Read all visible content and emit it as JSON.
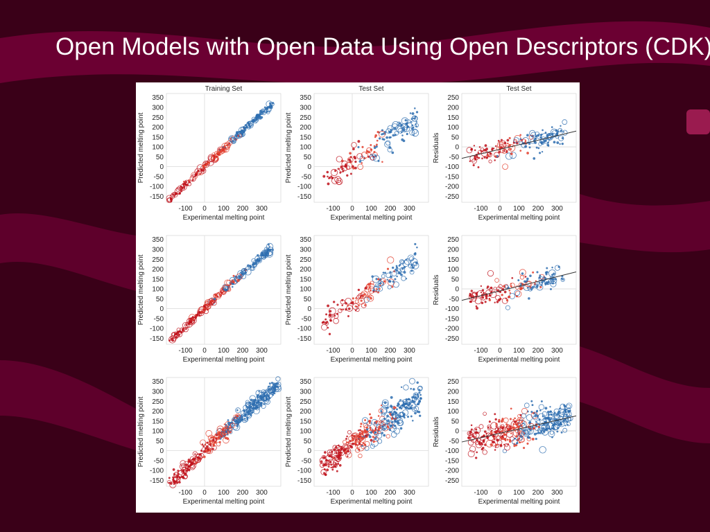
{
  "slide": {
    "title": "Open Models with Open Data Using Open Descriptors (CDK)",
    "colors": {
      "background": "#3a0018",
      "swoosh": "#6e0034",
      "title_text": "#ffffff",
      "figure_bg": "#ffffff"
    }
  },
  "chart_data": [
    {
      "type": "scatter",
      "title": "Training Set",
      "xlabel": "Experimental melting point",
      "ylabel": "Predicted melting point",
      "xlim": [
        -200,
        400
      ],
      "ylim": [
        -180,
        370
      ],
      "xticks": [
        -100,
        0,
        100,
        200,
        300
      ],
      "yticks": [
        -150,
        -100,
        -50,
        0,
        50,
        100,
        150,
        200,
        250,
        300,
        350
      ],
      "grid": "zero-lines",
      "cloud": {
        "kind": "pred",
        "x_range": [
          -190,
          360
        ],
        "slope": 0.92,
        "intercept": 0,
        "spread": 8,
        "points": 260
      }
    },
    {
      "type": "scatter",
      "title": "Test Set",
      "xlabel": "Experimental melting point",
      "ylabel": "Predicted melting point",
      "xlim": [
        -200,
        400
      ],
      "ylim": [
        -180,
        370
      ],
      "xticks": [
        -100,
        0,
        100,
        200,
        300
      ],
      "yticks": [
        -150,
        -100,
        -50,
        0,
        50,
        100,
        150,
        200,
        250,
        300,
        350
      ],
      "grid": "zero-lines",
      "cloud": {
        "kind": "pred",
        "x_range": [
          -160,
          340
        ],
        "slope": 0.65,
        "intercept": 30,
        "spread": 32,
        "points": 160
      }
    },
    {
      "type": "scatter",
      "title": "Test Set",
      "xlabel": "Experimental melting point",
      "ylabel": "Residuals",
      "xlim": [
        -200,
        400
      ],
      "ylim": [
        -280,
        270
      ],
      "xticks": [
        -100,
        0,
        100,
        200,
        300
      ],
      "yticks": [
        -250,
        -200,
        -150,
        -100,
        -50,
        0,
        50,
        100,
        150,
        200,
        250
      ],
      "grid": "zero-lines",
      "trend": {
        "slope": 0.23,
        "intercept": -12
      },
      "cloud": {
        "kind": "resid",
        "x_range": [
          -170,
          340
        ],
        "slope": 0.23,
        "intercept": -12,
        "spread": 30,
        "points": 160
      }
    },
    {
      "type": "scatter",
      "title": "",
      "xlabel": "Experimental melting point",
      "ylabel": "Predicted melting point",
      "xlim": [
        -200,
        400
      ],
      "ylim": [
        -180,
        370
      ],
      "xticks": [
        -100,
        0,
        100,
        200,
        300
      ],
      "yticks": [
        -150,
        -100,
        -50,
        0,
        50,
        100,
        150,
        200,
        250,
        300,
        350
      ],
      "grid": "zero-lines",
      "cloud": {
        "kind": "pred",
        "x_range": [
          -190,
          360
        ],
        "slope": 0.9,
        "intercept": 0,
        "spread": 9,
        "points": 260
      }
    },
    {
      "type": "scatter",
      "title": "",
      "xlabel": "Experimental melting point",
      "ylabel": "Predicted melting point",
      "xlim": [
        -200,
        400
      ],
      "ylim": [
        -180,
        370
      ],
      "xticks": [
        -100,
        0,
        100,
        200,
        300
      ],
      "yticks": [
        -150,
        -100,
        -50,
        0,
        50,
        100,
        150,
        200,
        250,
        300,
        350
      ],
      "grid": "zero-lines",
      "cloud": {
        "kind": "pred",
        "x_range": [
          -160,
          340
        ],
        "slope": 0.68,
        "intercept": 25,
        "spread": 30,
        "points": 160
      }
    },
    {
      "type": "scatter",
      "title": "",
      "xlabel": "Experimental melting point",
      "ylabel": "Residuals",
      "xlim": [
        -200,
        400
      ],
      "ylim": [
        -280,
        270
      ],
      "xticks": [
        -100,
        0,
        100,
        200,
        300
      ],
      "yticks": [
        -250,
        -200,
        -150,
        -100,
        -50,
        0,
        50,
        100,
        150,
        200,
        250
      ],
      "grid": "zero-lines",
      "trend": {
        "slope": 0.24,
        "intercept": -10
      },
      "cloud": {
        "kind": "resid",
        "x_range": [
          -170,
          340
        ],
        "slope": 0.24,
        "intercept": -10,
        "spread": 28,
        "points": 160
      }
    },
    {
      "type": "scatter",
      "title": "",
      "xlabel": "Experimental melting point",
      "ylabel": "Predicted melting point",
      "xlim": [
        -200,
        400
      ],
      "ylim": [
        -180,
        370
      ],
      "xticks": [
        -100,
        0,
        100,
        200,
        300
      ],
      "yticks": [
        -150,
        -100,
        -50,
        0,
        50,
        100,
        150,
        200,
        250,
        300,
        350
      ],
      "grid": "zero-lines",
      "cloud": {
        "kind": "pred",
        "x_range": [
          -190,
          390
        ],
        "slope": 0.9,
        "intercept": 0,
        "spread": 20,
        "points": 420
      }
    },
    {
      "type": "scatter",
      "title": "",
      "xlabel": "Experimental melting point",
      "ylabel": "Predicted melting point",
      "xlim": [
        -200,
        400
      ],
      "ylim": [
        -180,
        370
      ],
      "xticks": [
        -100,
        0,
        100,
        200,
        300
      ],
      "yticks": [
        -150,
        -100,
        -50,
        0,
        50,
        100,
        150,
        200,
        250,
        300,
        350
      ],
      "grid": "zero-lines",
      "cloud": {
        "kind": "pred",
        "x_range": [
          -170,
          360
        ],
        "slope": 0.7,
        "intercept": 30,
        "spread": 40,
        "points": 380
      }
    },
    {
      "type": "scatter",
      "title": "",
      "xlabel": "Experimental melting point",
      "ylabel": "Residuals",
      "xlim": [
        -200,
        400
      ],
      "ylim": [
        -280,
        270
      ],
      "xticks": [
        -100,
        0,
        100,
        200,
        300
      ],
      "yticks": [
        -250,
        -200,
        -150,
        -100,
        -50,
        0,
        50,
        100,
        150,
        200,
        250
      ],
      "grid": "zero-lines",
      "trend": {
        "slope": 0.22,
        "intercept": -12
      },
      "cloud": {
        "kind": "resid",
        "x_range": [
          -170,
          370
        ],
        "slope": 0.22,
        "intercept": -12,
        "spread": 40,
        "points": 380
      }
    }
  ],
  "point_colors": {
    "low": "#c0131c",
    "mid": "#e3402e",
    "high": "#2f6fb0",
    "trend_line": "#333333",
    "zero_line": "#d9d9d9"
  }
}
